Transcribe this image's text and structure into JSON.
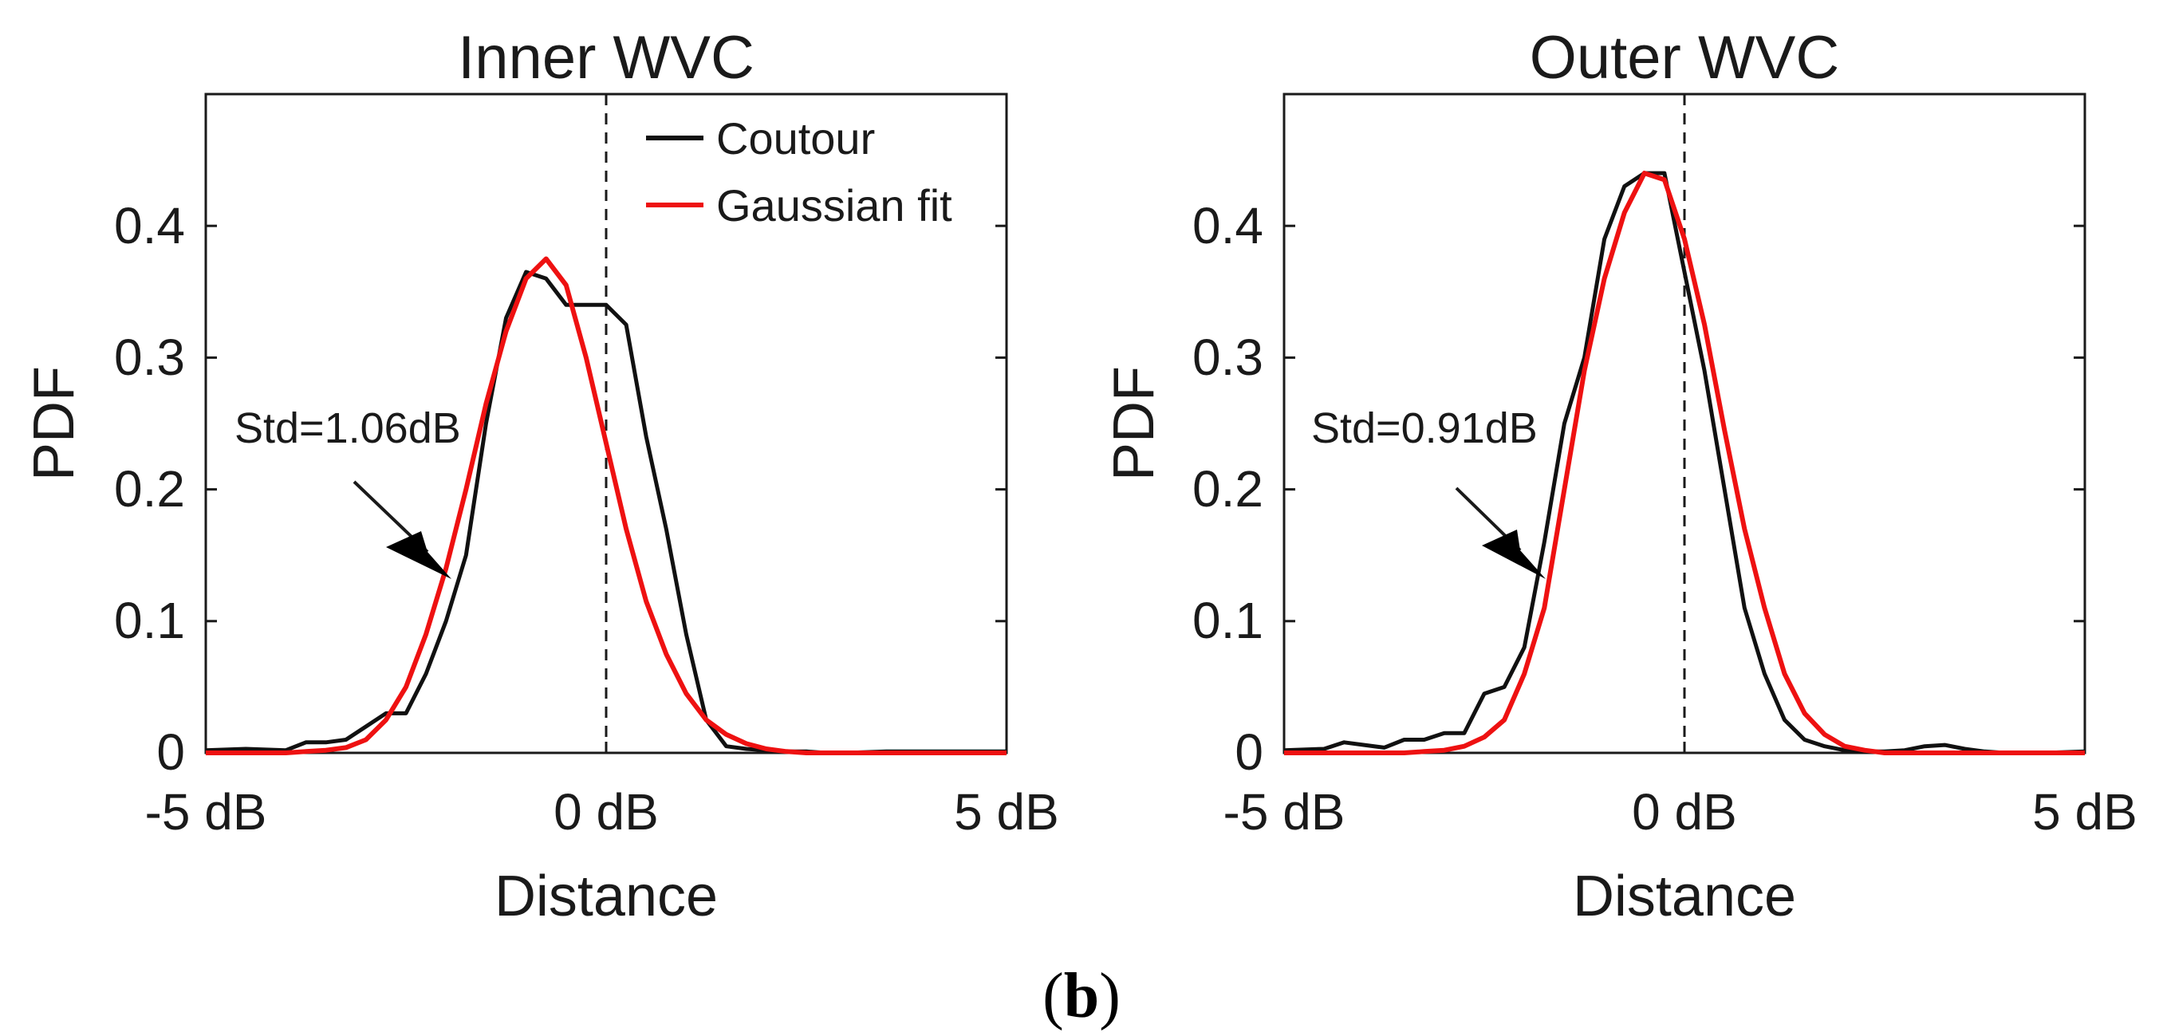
{
  "caption": {
    "open": "(",
    "letter": "b",
    "close": ")"
  },
  "chart_data": [
    {
      "type": "line",
      "title": "Inner WVC",
      "xlabel": "Distance",
      "ylabel": "PDF",
      "xlim": [
        -5,
        5
      ],
      "ylim": [
        0,
        0.5
      ],
      "xticks": [
        -5,
        0,
        5
      ],
      "xtick_labels": [
        "-5 dB",
        "0 dB",
        "5 dB"
      ],
      "yticks": [
        0,
        0.1,
        0.2,
        0.3,
        0.4
      ],
      "ytick_labels": [
        "0",
        "0.1",
        "0.2",
        "0.3",
        "0.4"
      ],
      "legend": {
        "position": "top-right",
        "entries": [
          "Coutour",
          "Gaussian fit"
        ]
      },
      "annotation": "Std=1.06dB",
      "dashed_vline_x": 0,
      "series": [
        {
          "name": "Coutour",
          "color": "#111111",
          "x": [
            -5,
            -4.5,
            -4,
            -3.75,
            -3.5,
            -3.25,
            -3.0,
            -2.75,
            -2.5,
            -2.25,
            -2.0,
            -1.75,
            -1.5,
            -1.25,
            -1.0,
            -0.75,
            -0.5,
            -0.25,
            0,
            0.25,
            0.5,
            0.75,
            1.0,
            1.25,
            1.5,
            1.75,
            2.0,
            2.25,
            2.5,
            2.75,
            3.0,
            3.5,
            4.0,
            4.5,
            5.0
          ],
          "y": [
            0.002,
            0.003,
            0.002,
            0.008,
            0.008,
            0.01,
            0.02,
            0.03,
            0.03,
            0.06,
            0.1,
            0.15,
            0.25,
            0.33,
            0.365,
            0.36,
            0.34,
            0.34,
            0.34,
            0.325,
            0.24,
            0.17,
            0.09,
            0.025,
            0.005,
            0.003,
            0.002,
            0.001,
            0.001,
            0.0,
            0.0,
            0.001,
            0.001,
            0.001,
            0.001
          ]
        },
        {
          "name": "Gaussian fit",
          "color": "#ee1111",
          "x": [
            -5,
            -4.5,
            -4,
            -3.75,
            -3.5,
            -3.25,
            -3.0,
            -2.75,
            -2.5,
            -2.25,
            -2.0,
            -1.75,
            -1.5,
            -1.25,
            -1.0,
            -0.75,
            -0.5,
            -0.25,
            0,
            0.25,
            0.5,
            0.75,
            1.0,
            1.25,
            1.5,
            1.75,
            2.0,
            2.25,
            2.5,
            2.75,
            3.0,
            3.5,
            4.0,
            4.5,
            5.0
          ],
          "y": [
            0.0,
            0.0,
            0.0,
            0.001,
            0.002,
            0.004,
            0.01,
            0.025,
            0.05,
            0.09,
            0.14,
            0.2,
            0.265,
            0.32,
            0.36,
            0.375,
            0.355,
            0.3,
            0.235,
            0.17,
            0.115,
            0.075,
            0.045,
            0.025,
            0.014,
            0.007,
            0.003,
            0.001,
            0.0,
            0.0,
            0.0,
            0.0,
            0.0,
            0.0,
            0.0
          ]
        }
      ]
    },
    {
      "type": "line",
      "title": "Outer WVC",
      "xlabel": "Distance",
      "ylabel": "PDF",
      "xlim": [
        -5,
        5
      ],
      "ylim": [
        0,
        0.5
      ],
      "xticks": [
        -5,
        0,
        5
      ],
      "xtick_labels": [
        "-5 dB",
        "0 dB",
        "5 dB"
      ],
      "yticks": [
        0,
        0.1,
        0.2,
        0.3,
        0.4
      ],
      "ytick_labels": [
        "0",
        "0.1",
        "0.2",
        "0.3",
        "0.4"
      ],
      "annotation": "Std=0.91dB",
      "dashed_vline_x": 0,
      "series": [
        {
          "name": "Coutour",
          "color": "#111111",
          "x": [
            -5,
            -4.5,
            -4.25,
            -4.0,
            -3.75,
            -3.5,
            -3.25,
            -3.0,
            -2.75,
            -2.5,
            -2.25,
            -2.0,
            -1.75,
            -1.5,
            -1.25,
            -1.0,
            -0.75,
            -0.5,
            -0.25,
            0,
            0.25,
            0.5,
            0.75,
            1.0,
            1.25,
            1.5,
            1.75,
            2.0,
            2.25,
            2.5,
            2.75,
            3.0,
            3.25,
            3.5,
            3.75,
            4.0,
            4.25,
            4.5,
            5.0
          ],
          "y": [
            0.002,
            0.003,
            0.008,
            0.006,
            0.004,
            0.01,
            0.01,
            0.015,
            0.015,
            0.045,
            0.05,
            0.08,
            0.16,
            0.25,
            0.3,
            0.39,
            0.43,
            0.44,
            0.44,
            0.365,
            0.29,
            0.2,
            0.11,
            0.06,
            0.025,
            0.01,
            0.005,
            0.002,
            0.001,
            0.001,
            0.002,
            0.005,
            0.006,
            0.003,
            0.001,
            0.0,
            0.0,
            0.0,
            0.001
          ]
        },
        {
          "name": "Gaussian fit",
          "color": "#ee1111",
          "x": [
            -5,
            -4.5,
            -4.25,
            -4.0,
            -3.75,
            -3.5,
            -3.25,
            -3.0,
            -2.75,
            -2.5,
            -2.25,
            -2.0,
            -1.75,
            -1.5,
            -1.25,
            -1.0,
            -0.75,
            -0.5,
            -0.25,
            0,
            0.25,
            0.5,
            0.75,
            1.0,
            1.25,
            1.5,
            1.75,
            2.0,
            2.25,
            2.5,
            2.75,
            3.0,
            3.25,
            3.5,
            3.75,
            4.0,
            4.25,
            4.5,
            5.0
          ],
          "y": [
            0.0,
            0.0,
            0.0,
            0.0,
            0.0,
            0.0,
            0.001,
            0.002,
            0.005,
            0.012,
            0.025,
            0.06,
            0.11,
            0.2,
            0.29,
            0.36,
            0.41,
            0.44,
            0.435,
            0.39,
            0.325,
            0.245,
            0.17,
            0.11,
            0.06,
            0.03,
            0.014,
            0.005,
            0.002,
            0.0,
            0.0,
            0.0,
            0.0,
            0.0,
            0.0,
            0.0,
            0.0,
            0.0,
            0.0
          ]
        }
      ]
    }
  ]
}
